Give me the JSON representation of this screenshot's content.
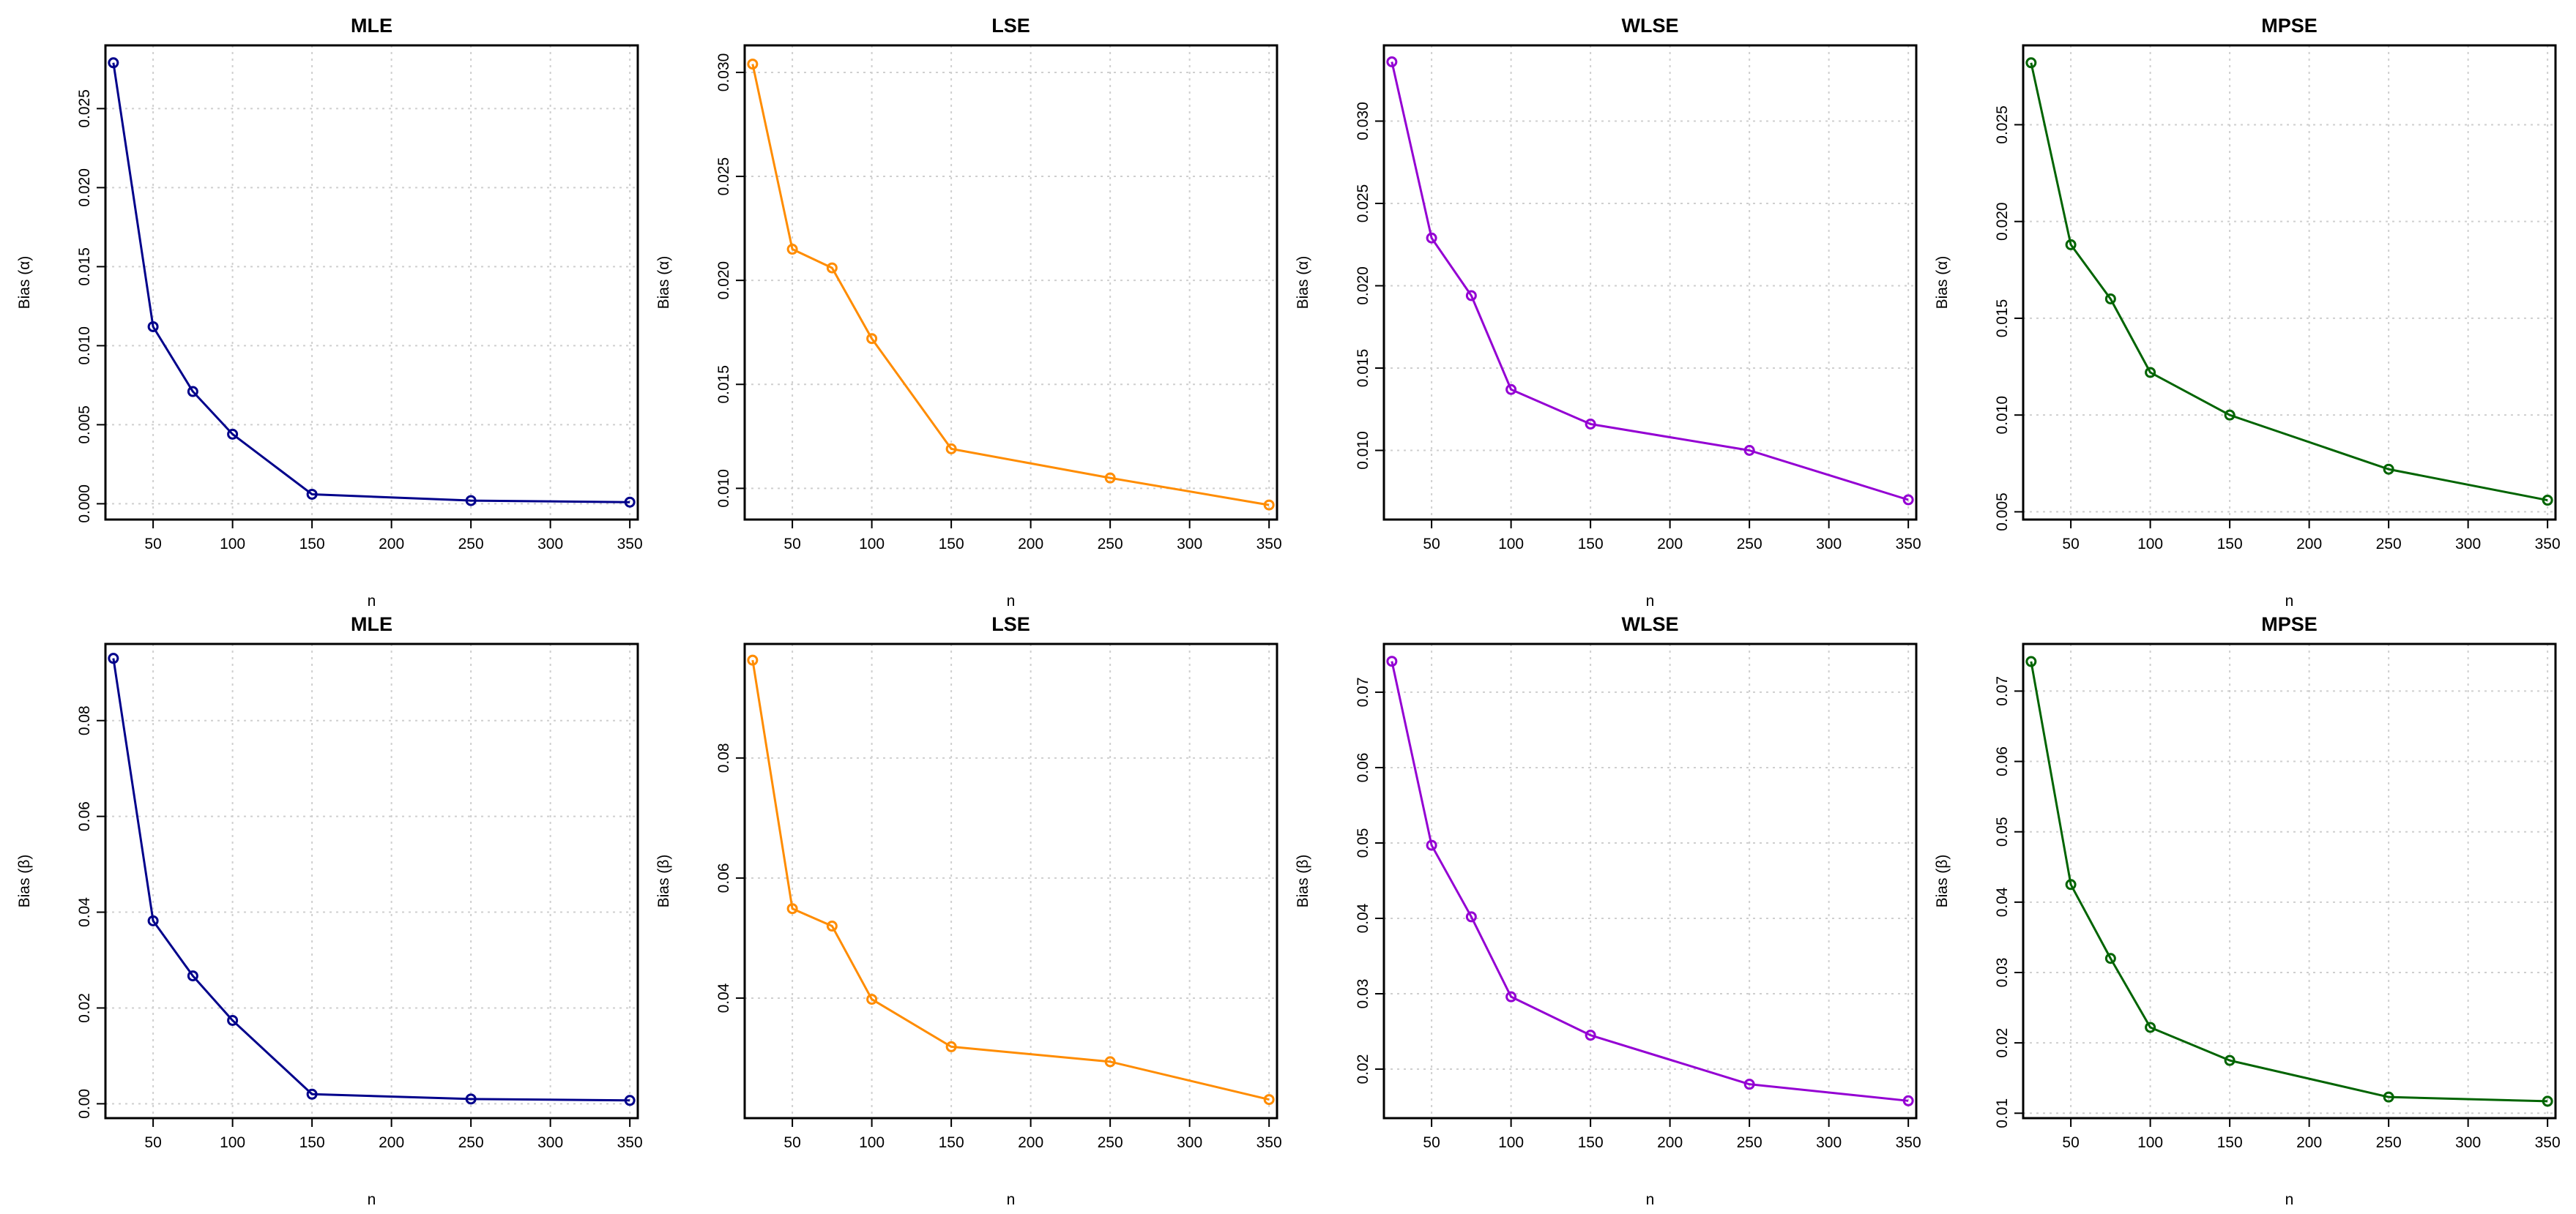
{
  "chart_data": [
    {
      "type": "line",
      "title": "MLE",
      "xlabel": "n",
      "ylabel": "Bias (α)",
      "color": "#00008B",
      "grid": true,
      "xlim": [
        20,
        355
      ],
      "ylim": [
        -0.001,
        0.029
      ],
      "x": [
        25,
        50,
        75,
        100,
        150,
        250,
        350
      ],
      "y": [
        0.0279,
        0.0112,
        0.0071,
        0.0044,
        0.0006,
        0.0002,
        0.0001
      ],
      "xticks": [
        50,
        100,
        150,
        200,
        250,
        300,
        350
      ],
      "xtick_labels": [
        "50",
        "100",
        "150",
        "200",
        "250",
        "300",
        "350"
      ],
      "yticks": [
        0.0,
        0.005,
        0.01,
        0.015,
        0.02,
        0.025
      ],
      "ytick_labels": [
        "0.000",
        "0.005",
        "0.010",
        "0.015",
        "0.020",
        "0.025"
      ]
    },
    {
      "type": "line",
      "title": "LSE",
      "xlabel": "n",
      "ylabel": "Bias (α)",
      "color": "#FF8C00",
      "grid": true,
      "xlim": [
        20,
        355
      ],
      "ylim": [
        0.0085,
        0.0313
      ],
      "x": [
        25,
        50,
        75,
        100,
        150,
        250,
        350
      ],
      "y": [
        0.0304,
        0.0215,
        0.0206,
        0.0172,
        0.0119,
        0.0105,
        0.0092
      ],
      "xticks": [
        50,
        100,
        150,
        200,
        250,
        300,
        350
      ],
      "xtick_labels": [
        "50",
        "100",
        "150",
        "200",
        "250",
        "300",
        "350"
      ],
      "yticks": [
        0.01,
        0.015,
        0.02,
        0.025,
        0.03
      ],
      "ytick_labels": [
        "0.010",
        "0.015",
        "0.020",
        "0.025",
        "0.030"
      ]
    },
    {
      "type": "line",
      "title": "WLSE",
      "xlabel": "n",
      "ylabel": "Bias (α)",
      "color": "#9400D3",
      "grid": true,
      "xlim": [
        20,
        355
      ],
      "ylim": [
        0.0058,
        0.0346
      ],
      "x": [
        25,
        50,
        75,
        100,
        150,
        250,
        350
      ],
      "y": [
        0.0336,
        0.0229,
        0.0194,
        0.0137,
        0.0116,
        0.01,
        0.007
      ],
      "xticks": [
        50,
        100,
        150,
        200,
        250,
        300,
        350
      ],
      "xtick_labels": [
        "50",
        "100",
        "150",
        "200",
        "250",
        "300",
        "350"
      ],
      "yticks": [
        0.01,
        0.015,
        0.02,
        0.025,
        0.03
      ],
      "ytick_labels": [
        "0.010",
        "0.015",
        "0.020",
        "0.025",
        "0.030"
      ]
    },
    {
      "type": "line",
      "title": "MPSE",
      "xlabel": "n",
      "ylabel": "Bias (α)",
      "color": "#006400",
      "grid": true,
      "xlim": [
        20,
        355
      ],
      "ylim": [
        0.0046,
        0.0291
      ],
      "x": [
        25,
        50,
        75,
        100,
        150,
        250,
        350
      ],
      "y": [
        0.0282,
        0.0188,
        0.016,
        0.0122,
        0.01,
        0.0072,
        0.0056
      ],
      "xticks": [
        50,
        100,
        150,
        200,
        250,
        300,
        350
      ],
      "xtick_labels": [
        "50",
        "100",
        "150",
        "200",
        "250",
        "300",
        "350"
      ],
      "yticks": [
        0.005,
        0.01,
        0.015,
        0.02,
        0.025
      ],
      "ytick_labels": [
        "0.005",
        "0.010",
        "0.015",
        "0.020",
        "0.025"
      ]
    },
    {
      "type": "line",
      "title": "MLE",
      "xlabel": "n",
      "ylabel": "Bias (β)",
      "color": "#00008B",
      "grid": true,
      "xlim": [
        20,
        355
      ],
      "ylim": [
        -0.003,
        0.096
      ],
      "x": [
        25,
        50,
        75,
        100,
        150,
        250,
        350
      ],
      "y": [
        0.093,
        0.0382,
        0.0267,
        0.0174,
        0.002,
        0.001,
        0.0007
      ],
      "xticks": [
        50,
        100,
        150,
        200,
        250,
        300,
        350
      ],
      "xtick_labels": [
        "50",
        "100",
        "150",
        "200",
        "250",
        "300",
        "350"
      ],
      "yticks": [
        0.0,
        0.02,
        0.04,
        0.06,
        0.08
      ],
      "ytick_labels": [
        "0.00",
        "0.02",
        "0.04",
        "0.06",
        "0.08"
      ]
    },
    {
      "type": "line",
      "title": "LSE",
      "xlabel": "n",
      "ylabel": "Bias (β)",
      "color": "#FF8C00",
      "grid": true,
      "xlim": [
        20,
        355
      ],
      "ylim": [
        0.02,
        0.099
      ],
      "x": [
        25,
        50,
        75,
        100,
        150,
        250,
        350
      ],
      "y": [
        0.0963,
        0.0549,
        0.052,
        0.0398,
        0.0319,
        0.0294,
        0.0231
      ],
      "xticks": [
        50,
        100,
        150,
        200,
        250,
        300,
        350
      ],
      "xtick_labels": [
        "50",
        "100",
        "150",
        "200",
        "250",
        "300",
        "350"
      ],
      "yticks": [
        0.04,
        0.06,
        0.08
      ],
      "ytick_labels": [
        "0.04",
        "0.06",
        "0.08"
      ]
    },
    {
      "type": "line",
      "title": "WLSE",
      "xlabel": "n",
      "ylabel": "Bias (β)",
      "color": "#9400D3",
      "grid": true,
      "xlim": [
        20,
        355
      ],
      "ylim": [
        0.0135,
        0.0764
      ],
      "x": [
        25,
        50,
        75,
        100,
        150,
        250,
        350
      ],
      "y": [
        0.0741,
        0.0497,
        0.0402,
        0.0296,
        0.0245,
        0.018,
        0.0158
      ],
      "xticks": [
        50,
        100,
        150,
        200,
        250,
        300,
        350
      ],
      "xtick_labels": [
        "50",
        "100",
        "150",
        "200",
        "250",
        "300",
        "350"
      ],
      "yticks": [
        0.02,
        0.03,
        0.04,
        0.05,
        0.06,
        0.07
      ],
      "ytick_labels": [
        "0.02",
        "0.03",
        "0.04",
        "0.05",
        "0.06",
        "0.07"
      ]
    },
    {
      "type": "line",
      "title": "MPSE",
      "xlabel": "n",
      "ylabel": "Bias (β)",
      "color": "#006400",
      "grid": true,
      "xlim": [
        20,
        355
      ],
      "ylim": [
        0.0093,
        0.0767
      ],
      "x": [
        25,
        50,
        75,
        100,
        150,
        250,
        350
      ],
      "y": [
        0.0742,
        0.0425,
        0.032,
        0.0222,
        0.0175,
        0.0123,
        0.0117
      ],
      "xticks": [
        50,
        100,
        150,
        200,
        250,
        300,
        350
      ],
      "xtick_labels": [
        "50",
        "100",
        "150",
        "200",
        "250",
        "300",
        "350"
      ],
      "yticks": [
        0.01,
        0.02,
        0.03,
        0.04,
        0.05,
        0.06,
        0.07
      ],
      "ytick_labels": [
        "0.01",
        "0.02",
        "0.03",
        "0.04",
        "0.05",
        "0.06",
        "0.07"
      ]
    }
  ]
}
